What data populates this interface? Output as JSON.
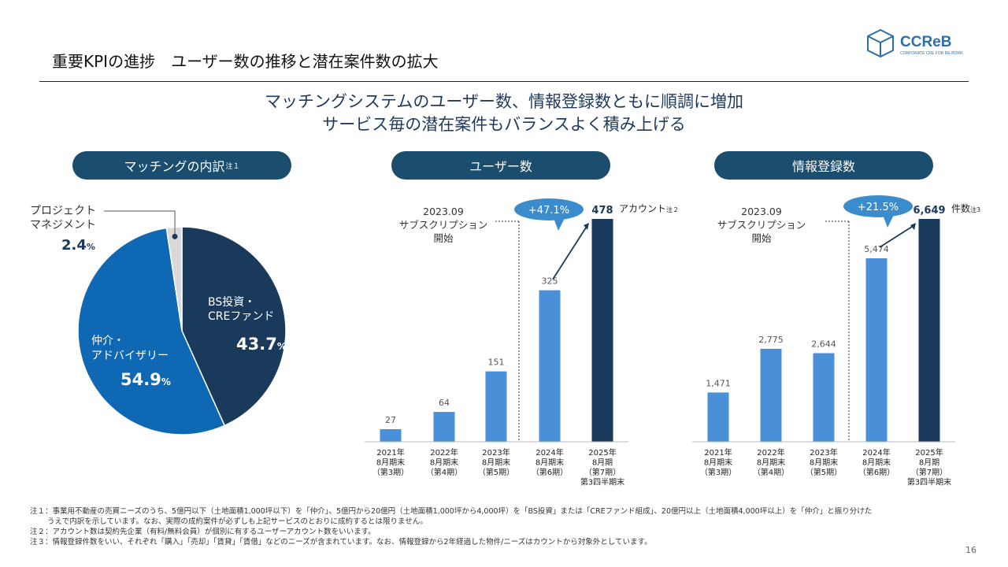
{
  "title": "重要KPIの進捗　ユーザー数の推移と潜在案件数の拡大",
  "logo": {
    "main": "CCReB",
    "sub": "CORPORATE CRE FOR RE-BORN"
  },
  "headline": [
    "マッチングシステムのユーザー数、情報登録数ともに順調に増加",
    "サービス毎の潜在案件もバランスよく積み上げる"
  ],
  "colors": {
    "navy": "#1a3a5c",
    "blue": "#2e7bbf",
    "light_bar": "#4a90d9",
    "gray": "#d9d9d9",
    "pill": "#1a4d6e",
    "bubble": "#3a8ccc"
  },
  "chart_data": [
    {
      "type": "pie",
      "title": "マッチングの内訳",
      "title_note": "注１",
      "slices": [
        {
          "name": "BS投資・CREファンド",
          "label_lines": [
            "BS投資・",
            "CREファンド"
          ],
          "value": 43.7,
          "value_label": "43.7",
          "unit": "%",
          "color": "#1a3a5c"
        },
        {
          "name": "仲介・アドバイザリー",
          "label_lines": [
            "仲介・",
            "アドバイザリー"
          ],
          "value": 54.9,
          "value_label": "54.9",
          "unit": "%",
          "color": "#0f68b4"
        },
        {
          "name": "プロジェクトマネジメント",
          "label_lines": [
            "プロジェクト",
            "マネジメント"
          ],
          "value": 2.4,
          "value_label": "2.4",
          "unit": "%",
          "color": "#d9d9d9"
        }
      ]
    },
    {
      "type": "bar",
      "title": "ユーザー数",
      "categories": [
        [
          "2021年",
          "8月期末",
          "（第3期）"
        ],
        [
          "2022年",
          "8月期末",
          "（第4期）"
        ],
        [
          "2023年",
          "8月期末",
          "（第5期）"
        ],
        [
          "2024年",
          "8月期末",
          "（第6期）"
        ],
        [
          "2025年",
          "8月期",
          "（第7期）",
          "第3四半期末"
        ]
      ],
      "values": [
        27,
        64,
        151,
        325,
        478
      ],
      "value_labels": [
        "27",
        "64",
        "151",
        "325",
        "478"
      ],
      "ylim": [
        0,
        478
      ],
      "last_unit": "アカウント",
      "last_note": "注２",
      "growth": "+47.1%",
      "annotation": [
        "2023.09",
        "サブスクリプション",
        "開始"
      ]
    },
    {
      "type": "bar",
      "title": "情報登録数",
      "categories": [
        [
          "2021年",
          "8月期末",
          "（第3期）"
        ],
        [
          "2022年",
          "8月期末",
          "（第4期）"
        ],
        [
          "2023年",
          "8月期末",
          "（第5期）"
        ],
        [
          "2024年",
          "8月期末",
          "（第6期）"
        ],
        [
          "2025年",
          "8月期",
          "（第7期）",
          "第3四半期末"
        ]
      ],
      "values": [
        1471,
        2775,
        2644,
        5474,
        6649
      ],
      "value_labels": [
        "1,471",
        "2,775",
        "2,644",
        "5,474",
        "6,649"
      ],
      "ylim": [
        0,
        6649
      ],
      "last_unit": "件数",
      "last_note": "注3",
      "growth": "+21.5%",
      "annotation": [
        "2023.09",
        "サブスクリプション",
        "開始"
      ]
    }
  ],
  "notes": [
    "注１：事業用不動産の売買ニーズのうち、5億円以下（土地面積1,000坪以下）を「仲介」、5億円から20億円（土地面積1,000坪から4,000坪）を「BS投資」または「CREファンド組成」、20億円以上（土地面積4,000坪以上）を「仲介」と振り分けた",
    "うえで内訳を示しています。なお、実際の成約案件が必ずしも上記サービスのとおりに成約するとは限りません。",
    "注２：アカウント数は契約先企業（有料/無料会員）が個別に有するユーザーアカウント数をいいます。",
    "注３：情報登録件数をいい、それぞれ「購入」「売却」「賃貸」「賃借」などのニーズが含まれています。なお、情報登録から2年経過した物件/ニーズはカウントから対象外としています。"
  ],
  "page_number": "16"
}
